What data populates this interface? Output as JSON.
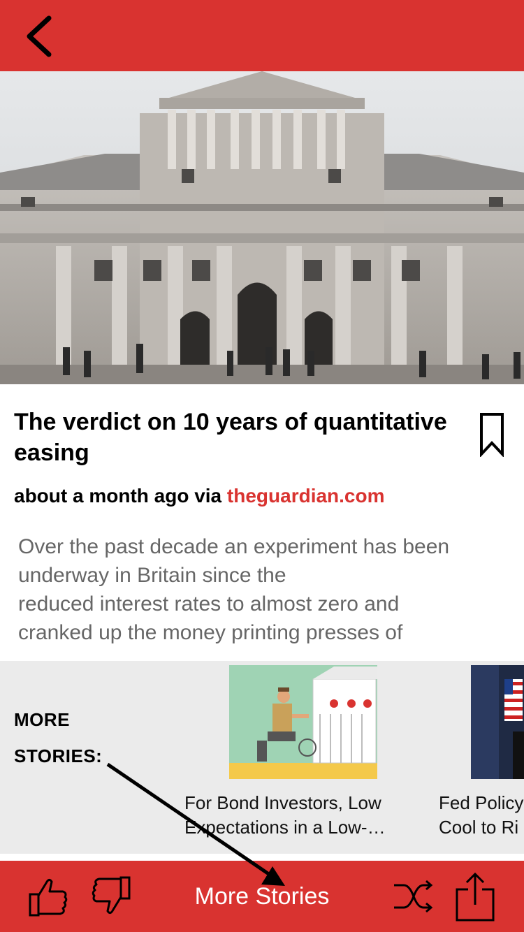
{
  "header": {
    "back_icon": "chevron-left-icon"
  },
  "article": {
    "title": "The verdict on 10 years of quantitative easing",
    "meta_prefix": "about a month ago via ",
    "source": "theguardian.com",
    "summary_lines": [
      "Over the past decade an experiment has been",
      "underway in Britain since the",
      "reduced interest rates to almost zero and",
      "cranked up the money printing presses of"
    ]
  },
  "more_stories": {
    "label_line1": "MORE",
    "label_line2": "STORIES:",
    "cards": [
      {
        "title_line1": "For Bond Investors, Low",
        "title_line2": "Expectations in a Low-…"
      },
      {
        "title_line1": "Fed Policy",
        "title_line2": "Cool to Ri"
      }
    ]
  },
  "bottom_bar": {
    "more_stories_label": "More Stories"
  },
  "colors": {
    "accent": "#d93330",
    "more_bg": "#ebebeb",
    "summary_text": "#666666"
  }
}
